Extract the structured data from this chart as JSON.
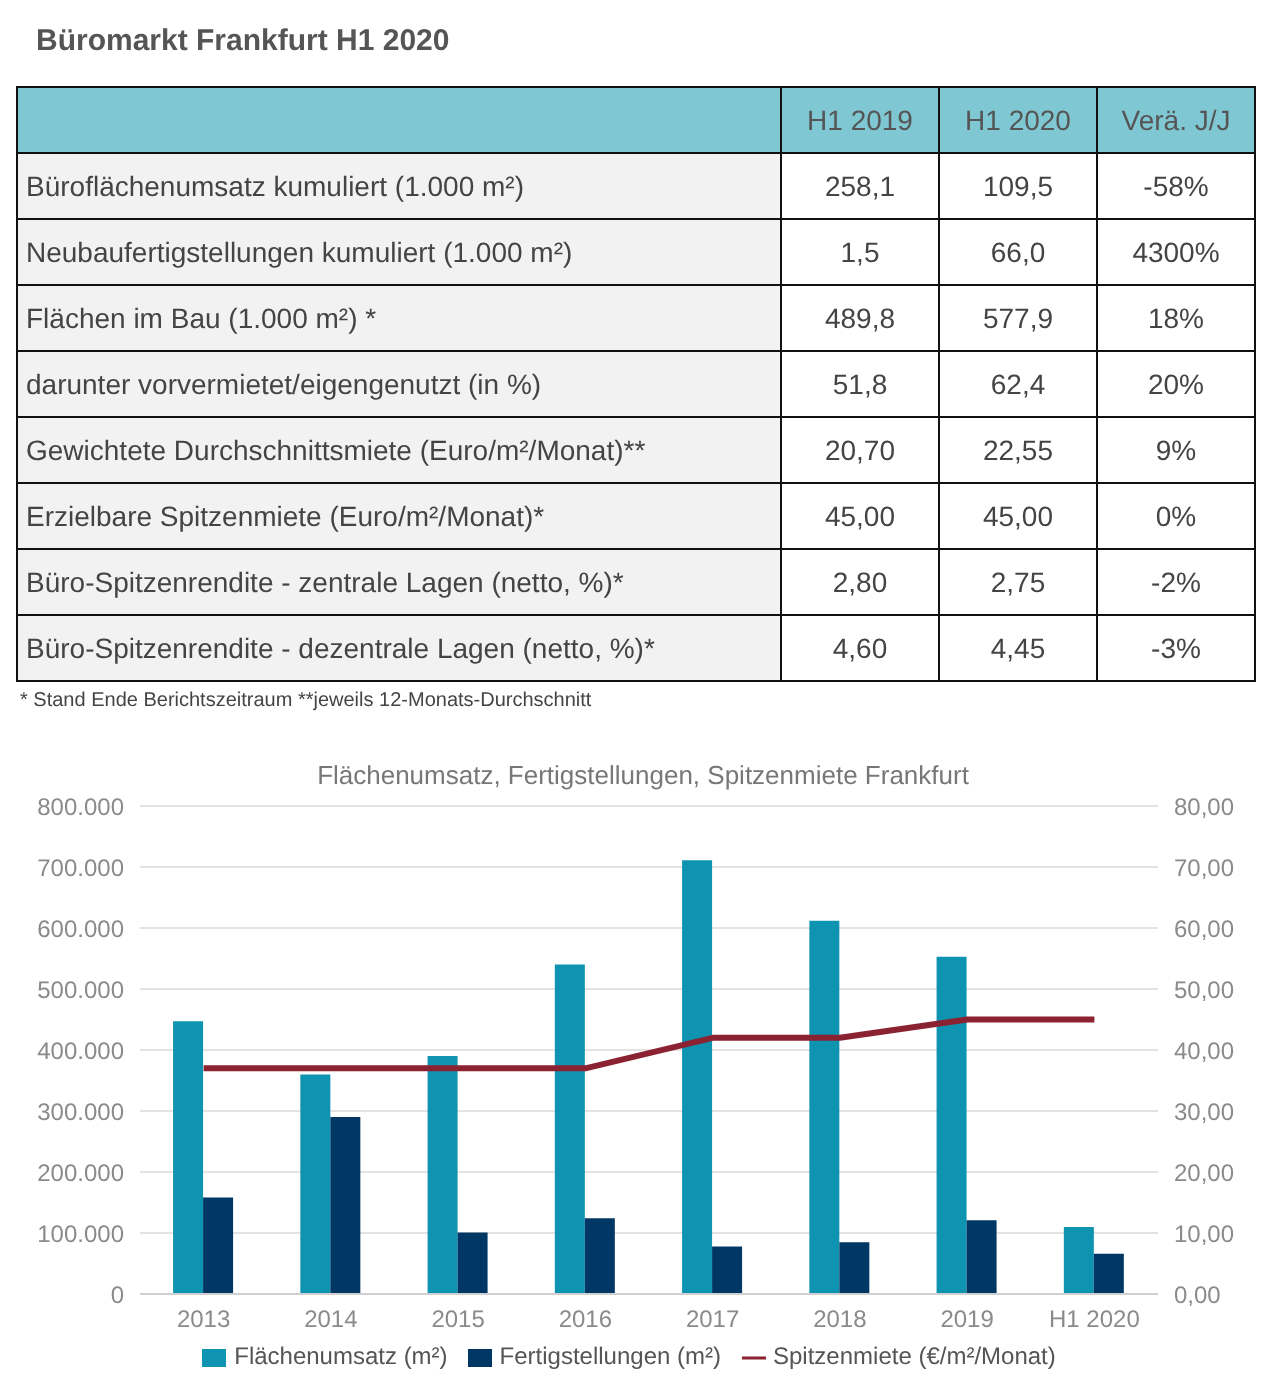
{
  "chart_data": [
    {
      "type": "other",
      "title": "Büromarkt Frankfurt H1 2020",
      "categories": [
        "H1 2019",
        "H1 2020",
        "Verä. J/J"
      ],
      "y_categories": [
        "Büroflächenumsatz kumuliert (1.000 m²)",
        "Neubaufertigstellungen kumuliert (1.000 m²)",
        "Flächen im Bau (1.000 m²) *",
        "darunter vorvermietet/eigengenutzt (in %)",
        "Gewichtete Durchschnittsmiete (Euro/m²/Monat)**",
        "Erzielbare Spitzenmiete (Euro/m²/Monat)*",
        "Büro-Spitzenrendite - zentrale Lagen (netto, %)*",
        "Büro-Spitzenrendite - dezentrale Lagen (netto, %)*"
      ],
      "cell_labels": [
        [
          "258,1",
          "109,5",
          "-58%"
        ],
        [
          "1,5",
          "66,0",
          "4300%"
        ],
        [
          "489,8",
          "577,9",
          "18%"
        ],
        [
          "51,8",
          "62,4",
          "20%"
        ],
        [
          "20,70",
          "22,55",
          "9%"
        ],
        [
          "45,00",
          "45,00",
          "0%"
        ],
        [
          "2,80",
          "2,75",
          "-2%"
        ],
        [
          "4,60",
          "4,45",
          "-3%"
        ]
      ],
      "annotations": [
        "* Stand Ende Berichtszeitraum **jeweils 12-Monats-Durchschnitt"
      ]
    },
    {
      "type": "bar",
      "title": "Flächenumsatz, Fertigstellungen, Spitzenmiete Frankfurt",
      "categories": [
        "2013",
        "2014",
        "2015",
        "2016",
        "2017",
        "2018",
        "2019",
        "H1 2020"
      ],
      "series": [
        {
          "name": "Flächenumsatz (m²)",
          "color": "#0e93b0",
          "values": [
            447000,
            360000,
            390000,
            540000,
            711000,
            612000,
            553000,
            110000
          ]
        },
        {
          "name": "Fertigstellungen (m²)",
          "color": "#003764",
          "values": [
            158000,
            290000,
            101000,
            124000,
            78000,
            85000,
            121000,
            66000
          ]
        },
        {
          "name": "Spitzenmiete (€/m²/Monat)",
          "type": "line",
          "axis": "y2",
          "color": "#8b2232",
          "values": [
            37,
            37,
            37,
            37,
            42,
            42,
            45,
            45
          ]
        }
      ],
      "ylim": [
        0,
        800000
      ],
      "yticks": [
        {
          "value": 0,
          "label": "0"
        },
        {
          "value": 100000,
          "label": "100.000"
        },
        {
          "value": 200000,
          "label": "200.000"
        },
        {
          "value": 300000,
          "label": "300.000"
        },
        {
          "value": 400000,
          "label": "400.000"
        },
        {
          "value": 500000,
          "label": "500.000"
        },
        {
          "value": 600000,
          "label": "600.000"
        },
        {
          "value": 700000,
          "label": "700.000"
        },
        {
          "value": 800000,
          "label": "800.000"
        }
      ],
      "y2lim": [
        0,
        80
      ],
      "y2ticks": [
        {
          "value": 0,
          "label": "0,00"
        },
        {
          "value": 10,
          "label": "10,00"
        },
        {
          "value": 20,
          "label": "20,00"
        },
        {
          "value": 30,
          "label": "30,00"
        },
        {
          "value": 40,
          "label": "40,00"
        },
        {
          "value": 50,
          "label": "50,00"
        },
        {
          "value": 60,
          "label": "60,00"
        },
        {
          "value": 70,
          "label": "70,00"
        },
        {
          "value": 80,
          "label": "80,00"
        }
      ],
      "grid": "y",
      "legend": "bottom",
      "marker": "none",
      "line_style": "solid"
    }
  ]
}
